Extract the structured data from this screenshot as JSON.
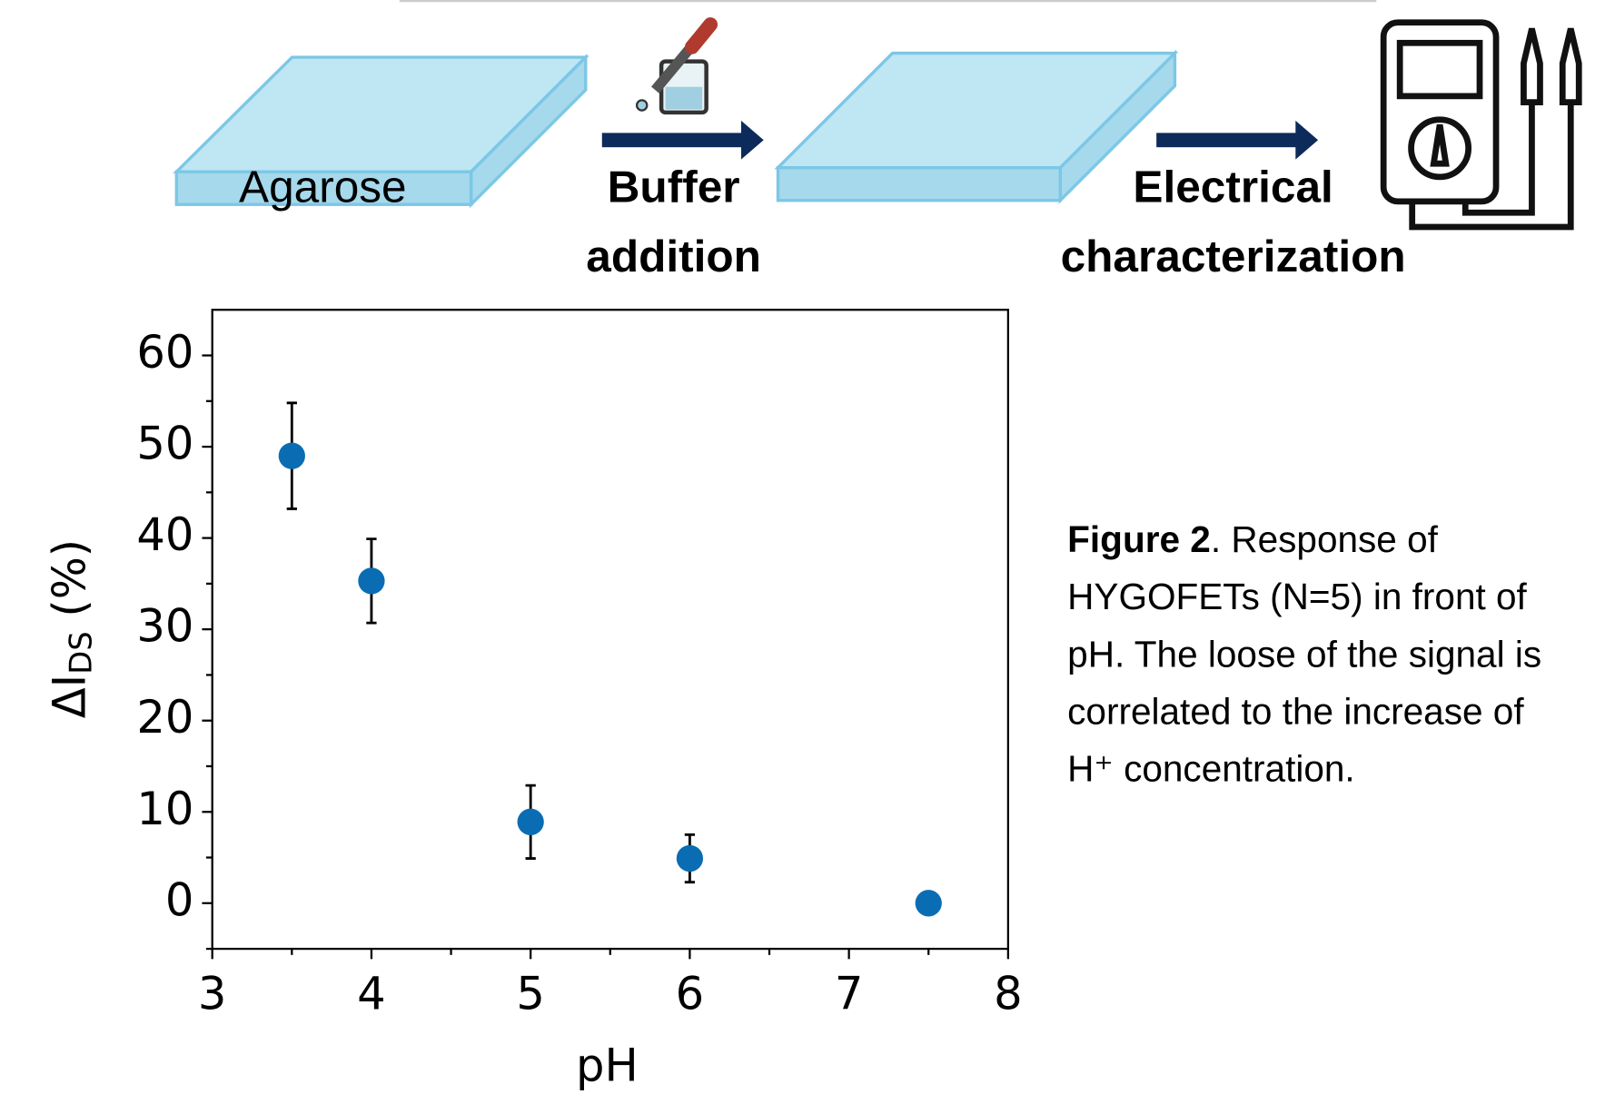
{
  "diagram": {
    "steps": [
      {
        "label": "Agarose"
      },
      {
        "label": [
          "Buffer",
          "addition"
        ]
      },
      {
        "label": [
          "Electrical",
          "characterization"
        ]
      }
    ]
  },
  "chart_data": {
    "type": "scatter",
    "x_label": "pH",
    "y_label": {
      "text": "ΔI",
      "sub": "DS",
      "suffix": " (%)"
    },
    "x": [
      3.5,
      4,
      5,
      6,
      7.5
    ],
    "series": [
      {
        "color": "#0a6db3",
        "values": [
          49,
          35.3,
          8.9,
          4.9,
          0
        ],
        "errors": [
          5.8,
          4.6,
          4,
          2.6,
          null
        ]
      }
    ],
    "xlim": [
      3,
      8
    ],
    "xticks": [
      3,
      4,
      5,
      6,
      7,
      8
    ],
    "xminor": [
      3.5,
      4.5,
      5.5,
      6.5,
      7.5
    ],
    "ylim": [
      -5,
      65
    ],
    "yticks": [
      0,
      10,
      20,
      30,
      40,
      50,
      60
    ],
    "yminor": [
      -5,
      5,
      15,
      25,
      35,
      45,
      55
    ]
  },
  "caption": {
    "label": "Figure 2",
    "lines": [
      ". Response of",
      "HYGOFETs (N=5) in front of",
      "pH. The loose of the signal is",
      "correlated to the increase of",
      "H⁺ concentration."
    ]
  }
}
